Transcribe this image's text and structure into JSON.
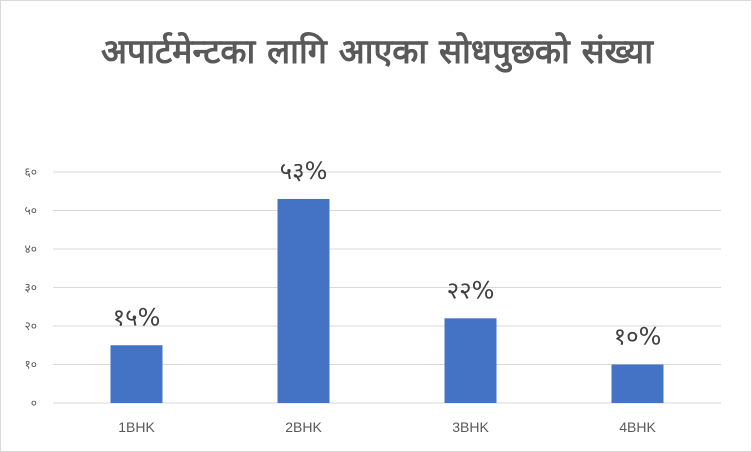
{
  "chart_data": {
    "type": "bar",
    "title": "अपार्टमेन्टका लागि आएका सोधपुछको संख्या",
    "categories": [
      "1BHK",
      "2BHK",
      "3BHK",
      "4BHK"
    ],
    "values": [
      15,
      53,
      22,
      10
    ],
    "data_labels": [
      "१५%",
      "५३%",
      "२२%",
      "१०%"
    ],
    "y_tick_values": [
      0,
      10,
      20,
      30,
      40,
      50,
      60
    ],
    "y_tick_labels": [
      "०",
      "१०",
      "२०",
      "३०",
      "४०",
      "५०",
      "६०"
    ],
    "xlabel": "",
    "ylabel": "",
    "ylim": [
      0,
      60
    ],
    "grid": true,
    "legend": "none",
    "bar_color": "#4472C4"
  }
}
